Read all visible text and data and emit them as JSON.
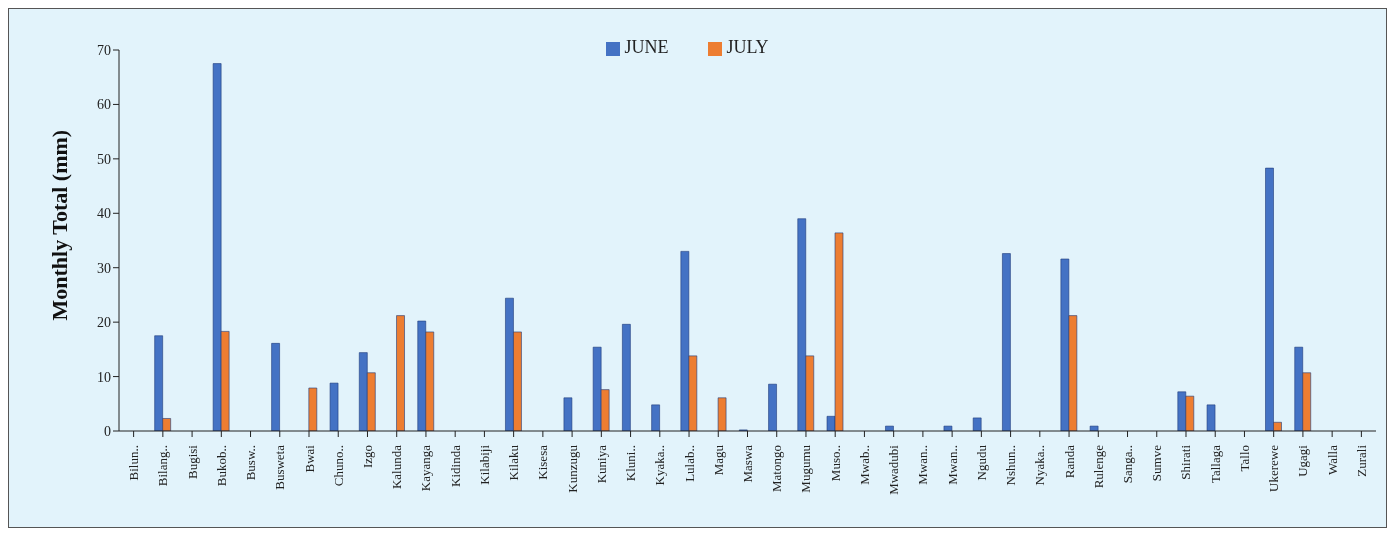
{
  "chart_data": {
    "type": "bar",
    "ylabel": "Monthly Total (mm)",
    "categories": [
      "Bilun..",
      "Bilang..",
      "Bugisi",
      "Bukob..",
      "Busw..",
      "Busweta",
      "Bwai",
      "Chuno..",
      "Izgo",
      "Kalunda",
      "Kayanga",
      "Kidinda",
      "Kilabiji",
      "Kilaku",
      "Kisesa",
      "Kunzugu",
      "Kuniya",
      "Kluni..",
      "Kyaka..",
      "Lulab..",
      "Magu",
      "Maswa",
      "Matongo",
      "Mugumu",
      "Muso..",
      "Mwab..",
      "Mwadubi",
      "Mwan..",
      "Mwan..",
      "Ngudu",
      "Nshun..",
      "Nyaka..",
      "Randa",
      "Rulenge",
      "Sanga..",
      "Sumve",
      "Shirati",
      "Tallaga",
      "Tallo",
      "Ukerewe",
      "Ugagi",
      "Walla",
      "Zurali"
    ],
    "series": [
      {
        "name": "JUNE",
        "color": "#4472c4",
        "values": [
          0,
          17.5,
          0,
          67.5,
          0,
          16.1,
          0,
          8.8,
          14.4,
          0,
          20.2,
          0,
          0,
          24.4,
          0,
          6.1,
          15.4,
          19.6,
          4.8,
          33,
          0,
          0.2,
          8.6,
          39,
          2.7,
          0,
          0.9,
          0,
          0.9,
          2.4,
          32.6,
          0,
          31.6,
          0.9,
          0,
          0,
          7.2,
          4.8,
          0,
          48.3,
          15.4,
          0,
          0
        ]
      },
      {
        "name": "JULY",
        "color": "#ed7d31",
        "values": [
          0,
          2.3,
          0,
          18.3,
          0,
          0,
          7.9,
          0,
          10.7,
          21.2,
          18.2,
          0,
          0,
          18.2,
          0,
          0,
          7.6,
          0,
          0,
          13.8,
          6.1,
          0,
          0,
          13.8,
          36.4,
          0,
          0,
          0,
          0,
          0,
          0,
          0,
          21.2,
          0,
          0,
          0,
          6.4,
          0,
          0,
          1.6,
          10.7,
          0,
          0
        ]
      }
    ],
    "ylim": [
      0,
      70
    ],
    "yticks": [
      0,
      10,
      20,
      30,
      40,
      50,
      60,
      70
    ],
    "grid": false,
    "legend": "top"
  }
}
